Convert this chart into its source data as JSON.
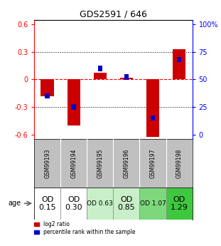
{
  "title": "GDS2591 / 646",
  "samples": [
    "GSM99193",
    "GSM99194",
    "GSM99195",
    "GSM99196",
    "GSM99197",
    "GSM99198"
  ],
  "log2_ratio": [
    -0.18,
    -0.5,
    0.07,
    0.02,
    -0.63,
    0.33
  ],
  "percentile_rank": [
    35,
    25,
    60,
    52,
    15,
    68
  ],
  "age_labels": [
    "OD\n0.15",
    "OD\n0.30",
    "OD 0.63",
    "OD\n0.85",
    "OD 1.07",
    "OD\n1.29"
  ],
  "age_bg_colors": [
    "#ffffff",
    "#ffffff",
    "#c8efc8",
    "#c8efc8",
    "#7dd87d",
    "#3ec83e"
  ],
  "age_font_sizes": [
    8,
    8,
    6.5,
    8,
    6.5,
    8
  ],
  "bar_color_red": "#cc0000",
  "bar_color_blue": "#0000cc",
  "ylim": [
    -0.65,
    0.65
  ],
  "yticks_left": [
    -0.6,
    -0.3,
    0.0,
    0.3,
    0.6
  ],
  "yticks_right": [
    0,
    25,
    50,
    75,
    100
  ],
  "background_color": "#ffffff",
  "sample_bg": "#c0c0c0",
  "bar_width": 0.5,
  "blue_marker_size": 0.06
}
